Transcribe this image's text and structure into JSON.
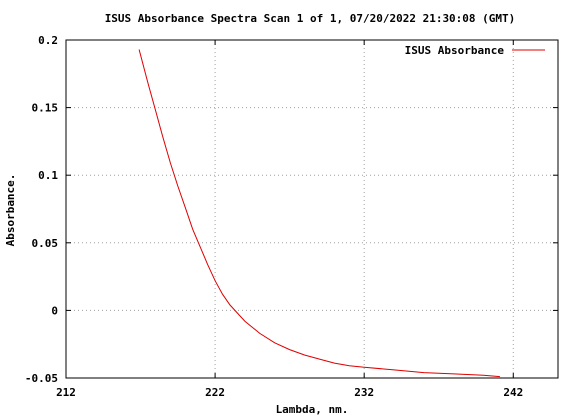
{
  "chart_data": {
    "type": "line",
    "title": "ISUS Absorbance Spectra Scan 1 of 1, 07/20/2022 21:30:08 (GMT)",
    "xlabel": "Lambda, nm.",
    "ylabel": "Absorbance.",
    "xlim": [
      212,
      245
    ],
    "ylim": [
      -0.05,
      0.2
    ],
    "x_ticks": [
      "212",
      "222",
      "232",
      "242"
    ],
    "y_ticks": [
      "0.2",
      "0.15",
      "0.1",
      "0.05",
      "0",
      "-0.05"
    ],
    "grid": true,
    "legend": "top-right",
    "series": [
      {
        "name": "ISUS Absorbance",
        "color": "#dd0000",
        "x": [
          216.9,
          217.5,
          218.0,
          218.5,
          219.0,
          219.5,
          220.0,
          220.5,
          221.0,
          221.5,
          222.0,
          222.5,
          223.0,
          224.0,
          225.0,
          226.0,
          227.0,
          228.0,
          229.0,
          230.0,
          231.0,
          232.0,
          234.0,
          236.0,
          238.0,
          240.0,
          241.1
        ],
        "values": [
          0.193,
          0.168,
          0.148,
          0.128,
          0.109,
          0.092,
          0.076,
          0.06,
          0.047,
          0.034,
          0.022,
          0.012,
          0.004,
          -0.008,
          -0.017,
          -0.024,
          -0.029,
          -0.033,
          -0.036,
          -0.039,
          -0.041,
          -0.042,
          -0.044,
          -0.046,
          -0.047,
          -0.048,
          -0.049
        ]
      }
    ]
  }
}
